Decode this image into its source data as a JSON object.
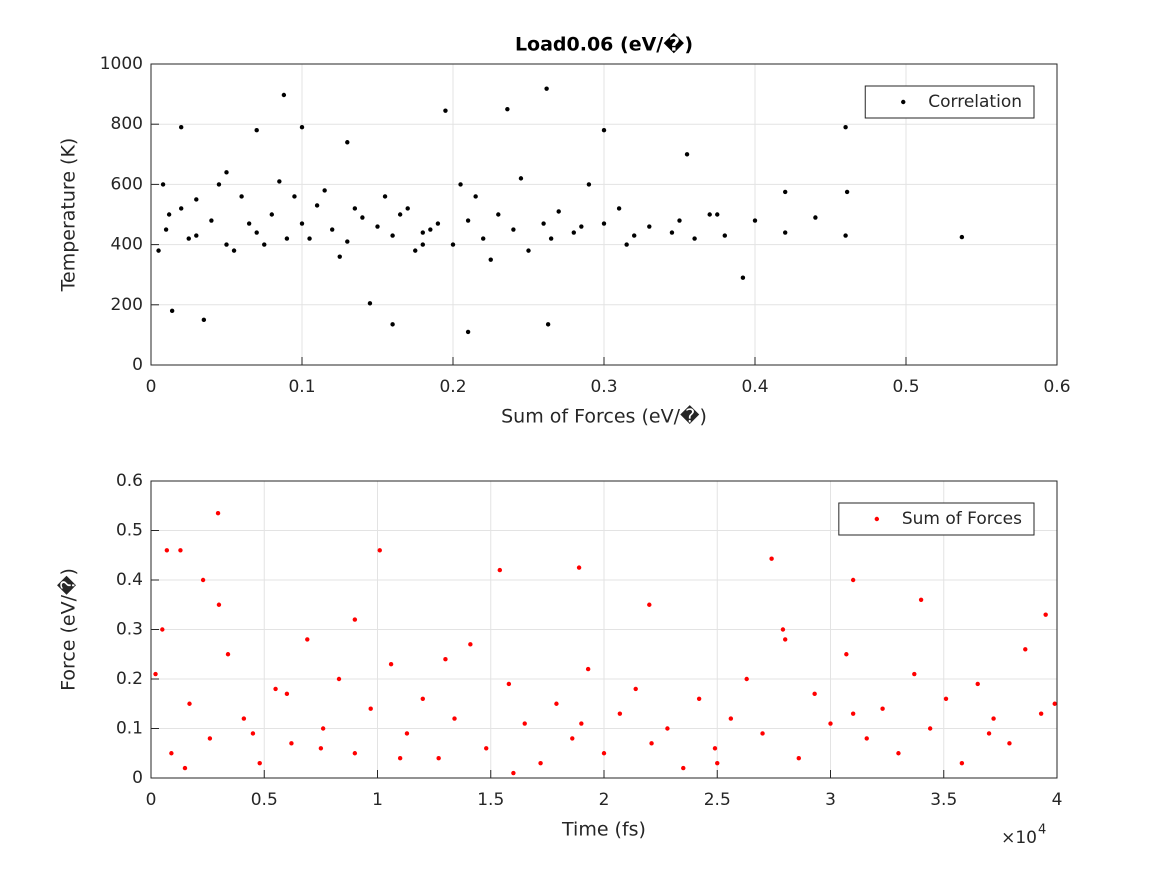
{
  "chart_data": [
    {
      "type": "scatter",
      "title": "Load0.06 (eV/�)",
      "x_label": "Sum of Forces (eV/�)",
      "y_label": "Temperature (K)",
      "xlim": [
        0,
        0.6
      ],
      "ylim": [
        0,
        1000
      ],
      "xticks": [
        0,
        0.1,
        0.2,
        0.3,
        0.4,
        0.5,
        0.6
      ],
      "yticks": [
        0,
        200,
        400,
        600,
        800,
        1000
      ],
      "grid": true,
      "legend_location": "northeast",
      "series": [
        {
          "name": "Correlation",
          "color": "#000000",
          "x": [
            0.01,
            0.02,
            0.03,
            0.04,
            0.05,
            0.06,
            0.07,
            0.08,
            0.09,
            0.1,
            0.11,
            0.12,
            0.13,
            0.14,
            0.15,
            0.16,
            0.17,
            0.18,
            0.19,
            0.2,
            0.21,
            0.22,
            0.23,
            0.24,
            0.25,
            0.26,
            0.27,
            0.28,
            0.3,
            0.31,
            0.32,
            0.33,
            0.35,
            0.36,
            0.37,
            0.38,
            0.4,
            0.42,
            0.44,
            0.46,
            0.537,
            0.088,
            0.262,
            0.014,
            0.035,
            0.21,
            0.16,
            0.263,
            0.145,
            0.195,
            0.236,
            0.46,
            0.461,
            0.392,
            0.02,
            0.05,
            0.07,
            0.1,
            0.13,
            0.18,
            0.03,
            0.045,
            0.055,
            0.085,
            0.115,
            0.125,
            0.155,
            0.175,
            0.205,
            0.225,
            0.245,
            0.29,
            0.3,
            0.355,
            0.42,
            0.005,
            0.008,
            0.012,
            0.025,
            0.065,
            0.075,
            0.095,
            0.105,
            0.135,
            0.165,
            0.185,
            0.215,
            0.265,
            0.285,
            0.315,
            0.345,
            0.375
          ],
          "values": [
            450,
            520,
            430,
            480,
            400,
            560,
            440,
            500,
            420,
            470,
            530,
            450,
            410,
            490,
            460,
            430,
            520,
            440,
            470,
            400,
            480,
            420,
            500,
            450,
            380,
            470,
            510,
            440,
            470,
            520,
            430,
            460,
            480,
            420,
            500,
            430,
            480,
            440,
            490,
            430,
            425,
            897,
            918,
            180,
            150,
            110,
            135,
            135,
            205,
            845,
            850,
            790,
            575,
            290,
            790,
            640,
            780,
            790,
            740,
            400,
            550,
            600,
            380,
            610,
            580,
            360,
            560,
            380,
            600,
            350,
            620,
            600,
            780,
            700,
            575,
            380,
            600,
            500,
            420,
            470,
            400,
            560,
            420,
            520,
            500,
            450,
            560,
            420,
            460,
            400,
            440,
            500
          ]
        }
      ]
    },
    {
      "type": "scatter",
      "x_label": "Time (fs)",
      "y_label": "Force (eV/�)",
      "x_exponent": {
        "base": "×10",
        "power": "4"
      },
      "xlim": [
        0,
        40000
      ],
      "ylim": [
        0,
        0.6
      ],
      "xticks": [
        {
          "value": 0,
          "label": "0"
        },
        {
          "value": 5000,
          "label": "0.5"
        },
        {
          "value": 10000,
          "label": "1"
        },
        {
          "value": 15000,
          "label": "1.5"
        },
        {
          "value": 20000,
          "label": "2"
        },
        {
          "value": 25000,
          "label": "2.5"
        },
        {
          "value": 30000,
          "label": "3"
        },
        {
          "value": 35000,
          "label": "3.5"
        },
        {
          "value": 40000,
          "label": "4"
        }
      ],
      "yticks": [
        0,
        0.1,
        0.2,
        0.3,
        0.4,
        0.5,
        0.6
      ],
      "grid": true,
      "legend_location": "northeast",
      "series": [
        {
          "name": "Sum of Forces",
          "color": "#ff0000",
          "x": [
            2960,
            700,
            1300,
            10100,
            27400,
            18900,
            15400,
            31000,
            2300,
            200,
            900,
            1700,
            2600,
            3400,
            4100,
            4800,
            5500,
            6200,
            6900,
            7600,
            8300,
            9000,
            9700,
            10600,
            11300,
            12000,
            12700,
            13400,
            14100,
            14800,
            15800,
            16500,
            17200,
            17900,
            18600,
            19300,
            20000,
            20700,
            21400,
            22100,
            22800,
            23500,
            24200,
            24900,
            25600,
            26300,
            27000,
            27900,
            28600,
            29300,
            30000,
            30700,
            31600,
            32300,
            33000,
            33700,
            34400,
            35100,
            35800,
            36500,
            37200,
            37900,
            38600,
            39300,
            39900,
            500,
            1500,
            3000,
            4500,
            6000,
            7500,
            9000,
            11000,
            13000,
            16000,
            19000,
            22000,
            25000,
            28000,
            31000,
            34000,
            37000,
            39500
          ],
          "values": [
            0.535,
            0.46,
            0.46,
            0.46,
            0.443,
            0.425,
            0.42,
            0.4,
            0.4,
            0.21,
            0.05,
            0.15,
            0.08,
            0.25,
            0.12,
            0.03,
            0.18,
            0.07,
            0.28,
            0.1,
            0.2,
            0.05,
            0.14,
            0.23,
            0.09,
            0.16,
            0.04,
            0.12,
            0.27,
            0.06,
            0.19,
            0.11,
            0.03,
            0.15,
            0.08,
            0.22,
            0.05,
            0.13,
            0.18,
            0.07,
            0.1,
            0.02,
            0.16,
            0.06,
            0.12,
            0.2,
            0.09,
            0.3,
            0.04,
            0.17,
            0.11,
            0.25,
            0.08,
            0.14,
            0.05,
            0.21,
            0.1,
            0.16,
            0.03,
            0.19,
            0.12,
            0.07,
            0.26,
            0.13,
            0.15,
            0.3,
            0.02,
            0.35,
            0.09,
            0.17,
            0.06,
            0.32,
            0.04,
            0.24,
            0.01,
            0.11,
            0.35,
            0.03,
            0.28,
            0.13,
            0.36,
            0.09,
            0.33
          ]
        }
      ]
    }
  ]
}
